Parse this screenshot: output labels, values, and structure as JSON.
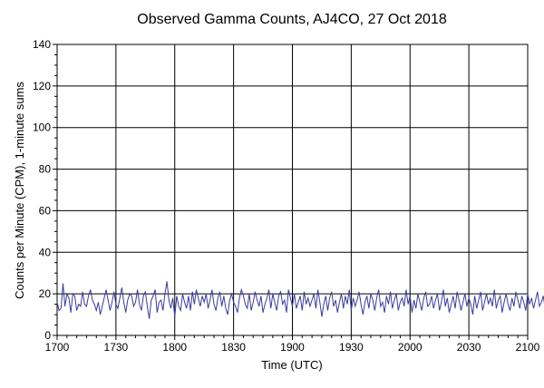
{
  "chart_data": {
    "type": "line",
    "title": "Observed Gamma Counts, AJ4CO, 27 Oct 2018",
    "xlabel": "Time (UTC)",
    "ylabel": "Counts per Minute (CPM), 1-minute sums",
    "x_ticks": [
      "1700",
      "1730",
      "1800",
      "1830",
      "1900",
      "1930",
      "2000",
      "2030",
      "2100"
    ],
    "y_ticks": [
      "0",
      "20",
      "40",
      "60",
      "80",
      "100",
      "120",
      "140"
    ],
    "xlim_minutes": [
      0,
      240
    ],
    "ylim": [
      0,
      140
    ],
    "grid": true,
    "line_color": "#3a3aa0",
    "series": [
      {
        "name": "",
        "values": [
          16,
          12,
          13,
          25,
          14,
          20,
          18,
          11,
          20,
          19,
          12,
          15,
          14,
          21,
          15,
          14,
          19,
          22,
          17,
          15,
          12,
          16,
          10,
          14,
          18,
          22,
          17,
          12,
          16,
          21,
          15,
          13,
          18,
          23,
          16,
          11,
          17,
          20,
          19,
          14,
          16,
          22,
          15,
          12,
          19,
          21,
          14,
          8,
          17,
          19,
          22,
          11,
          16,
          17,
          12,
          20,
          26,
          17,
          13,
          18,
          9,
          19,
          14,
          12,
          20,
          16,
          13,
          19,
          12,
          21,
          15,
          22,
          18,
          14,
          19,
          16,
          20,
          13,
          17,
          22,
          15,
          12,
          18,
          21,
          14,
          19,
          13,
          10,
          17,
          20,
          16,
          14,
          11,
          18,
          22,
          19,
          15,
          13,
          20,
          12,
          16,
          21,
          17,
          14,
          19,
          11,
          15,
          18,
          22,
          13,
          20,
          16,
          12,
          19,
          21,
          15,
          17,
          11,
          22,
          18,
          14,
          20,
          13,
          16,
          19,
          12,
          21,
          15,
          18,
          14,
          17,
          20,
          13,
          22,
          16,
          9,
          15,
          19,
          12,
          18,
          21,
          14,
          17,
          11,
          16,
          20,
          13,
          19,
          15,
          22,
          12,
          18,
          14,
          17,
          21,
          15,
          10,
          16,
          19,
          13,
          20,
          17,
          12,
          18,
          22,
          14,
          16,
          11,
          19,
          15,
          21,
          13,
          17,
          20,
          12,
          16,
          18,
          14,
          22,
          15,
          19,
          11,
          17,
          13,
          20,
          16,
          12,
          18,
          21,
          14,
          15,
          19,
          13,
          17,
          20,
          12,
          16,
          22,
          14,
          18,
          11,
          15,
          19,
          13,
          21,
          17,
          12,
          16,
          20,
          14,
          18,
          15,
          10,
          19,
          13,
          17,
          21,
          12,
          16,
          20,
          15,
          18,
          14,
          22,
          13,
          17,
          19,
          11,
          16,
          20,
          15,
          12,
          18,
          14,
          21,
          17,
          13,
          19,
          16,
          12,
          20,
          15,
          18,
          13,
          17,
          21,
          14,
          16,
          19,
          12,
          20
        ],
        "x_start_minute": 0,
        "x_step_minutes": 1
      }
    ]
  }
}
